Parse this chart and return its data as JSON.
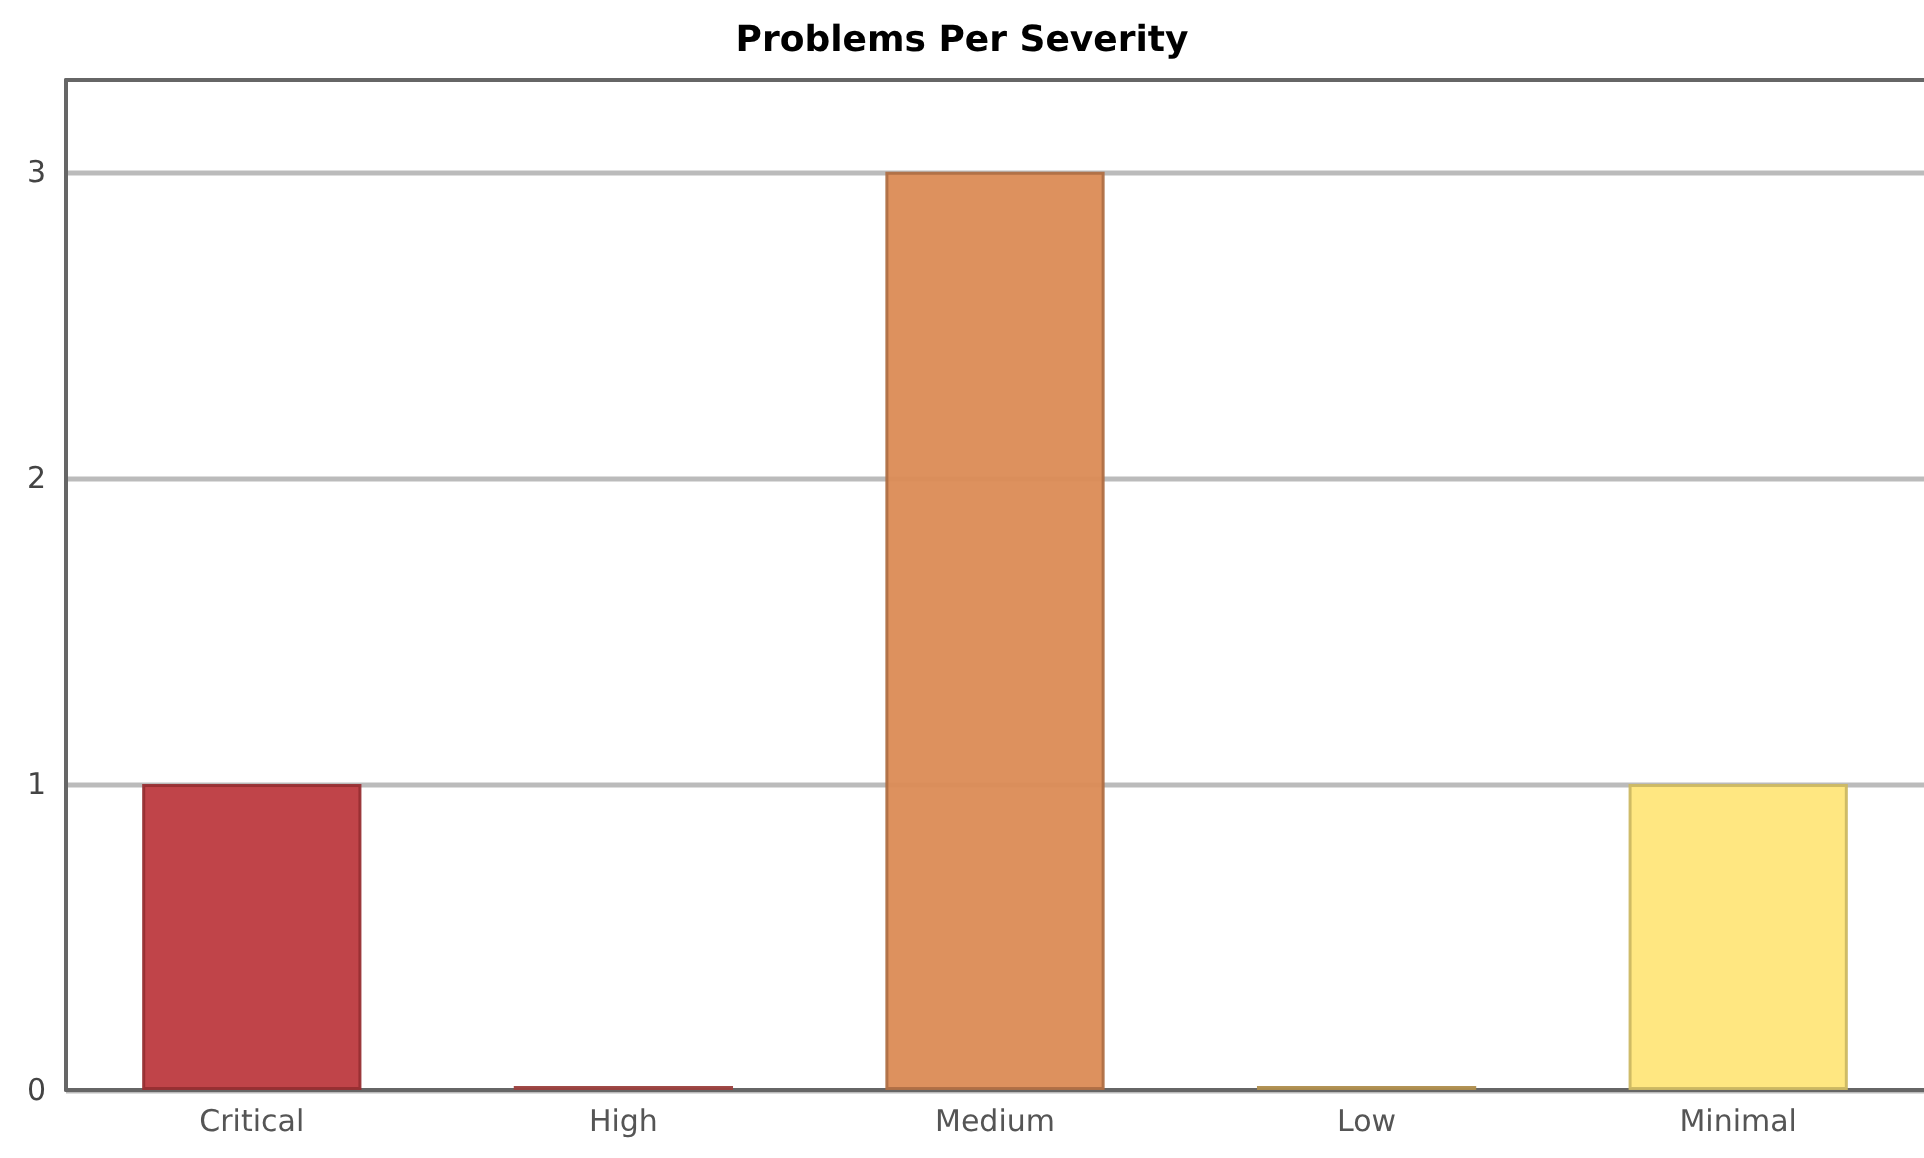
{
  "chart_data": {
    "type": "bar",
    "title": "Problems Per Severity",
    "categories": [
      "Critical",
      "High",
      "Medium",
      "Low",
      "Minimal"
    ],
    "values": [
      1,
      0,
      3,
      0,
      1
    ],
    "colors": [
      "#bd3a3f",
      "#c0504d",
      "#db8b55",
      "#d9b060",
      "#ffe67a"
    ],
    "ylim": [
      0,
      3.3
    ],
    "yticks": [
      0,
      1,
      2,
      3
    ],
    "grid": "y"
  }
}
